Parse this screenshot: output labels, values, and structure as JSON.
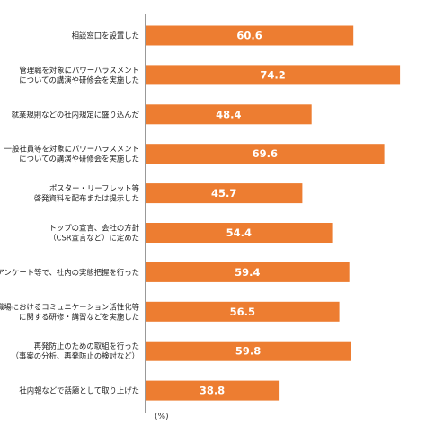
{
  "colors": {
    "bar": "#ED7D31",
    "axis": "#999999",
    "value_text": "#ffffff"
  },
  "chart_data": {
    "type": "bar",
    "orientation": "horizontal",
    "categories": [
      [
        "相談窓口を設置した"
      ],
      [
        "管理職を対象にパワーハラスメント",
        "についての講演や研修会を実施した"
      ],
      [
        "就業規則などの社内規定に盛り込んだ"
      ],
      [
        "一般社員等を対象にパワーハラスメント",
        "についての講演や研修会を実施した"
      ],
      [
        "ポスター・リーフレット等",
        "啓発資料を配布または提示した"
      ],
      [
        "トップの宣言、会社の方針",
        "（CSR宣言など）に定めた"
      ],
      [
        "アンケート等で、社内の実態把握を行った"
      ],
      [
        "職場におけるコミュニケーション活性化等",
        "に関する研修・講習などを実施した"
      ],
      [
        "再発防止のための取組を行った",
        "（事案の分析、再発防止の検討など）"
      ],
      [
        "社内報などで話題として取り上げた"
      ]
    ],
    "values": [
      60.6,
      74.2,
      48.4,
      69.6,
      45.7,
      54.4,
      59.4,
      56.5,
      59.8,
      38.8
    ],
    "unit": "(%)",
    "xlim": [
      0,
      76
    ],
    "grid": false,
    "legend": "none"
  }
}
